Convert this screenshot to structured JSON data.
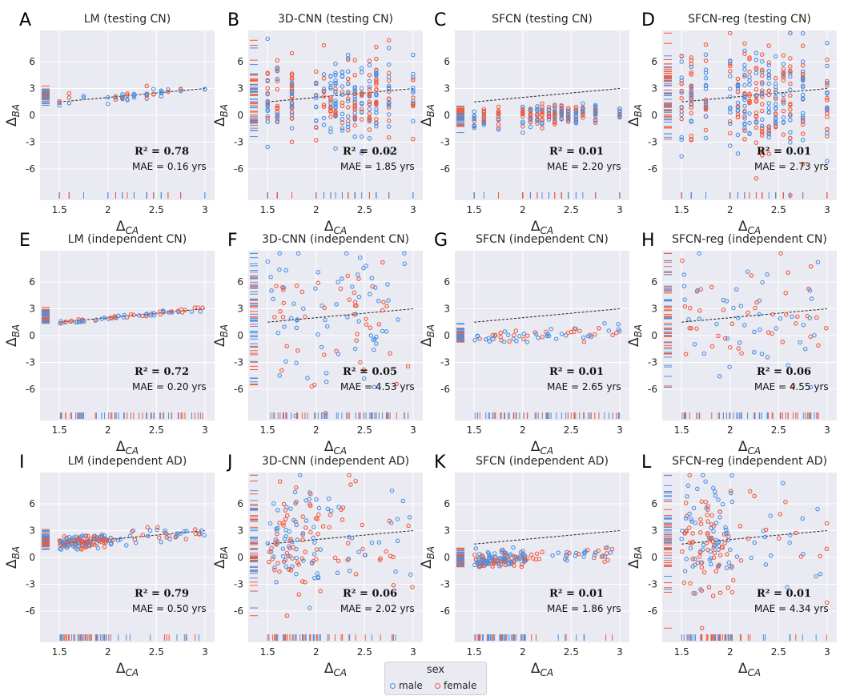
{
  "legend": {
    "title": "sex",
    "male_label": "male",
    "female_label": "female"
  },
  "colors": {
    "male": "#4a90e2",
    "female": "#ef5a3c",
    "panel_bg": "#eaeaf2",
    "grid": "#ffffff"
  },
  "chart_data": [
    {
      "id": "A",
      "type": "scatter",
      "title": "LM (testing CN)",
      "xlabel": "Δ",
      "xlabel_sub": "CA",
      "ylabel": "Δ",
      "ylabel_sub": "BA",
      "xticks": [
        "1.5",
        "2",
        "2.5",
        "3"
      ],
      "yticks": [
        "6",
        "3",
        "0",
        "-3",
        "-6"
      ],
      "xlim": [
        1.3,
        3.1
      ],
      "ylim": [
        -9.5,
        9.5
      ],
      "r2": "R² = 0.78",
      "mae": "MAE = 0.16 yrs",
      "spread": 0.3,
      "n": 48,
      "xmode": "testing",
      "pred": "lm"
    },
    {
      "id": "B",
      "type": "scatter",
      "title": "3D-CNN (testing CN)",
      "xlabel": "Δ",
      "xlabel_sub": "CA",
      "ylabel": "Δ",
      "ylabel_sub": "BA",
      "xticks": [
        "1.5",
        "2",
        "2.5",
        "3"
      ],
      "yticks": [
        "6",
        "3",
        "0",
        "-3",
        "-6"
      ],
      "xlim": [
        1.3,
        3.1
      ],
      "ylim": [
        -9.5,
        9.5
      ],
      "r2": "R² = 0.02",
      "mae": "MAE = 1.85 yrs",
      "spread": 2.3,
      "n": 300,
      "xmode": "testing",
      "pred": "cnn"
    },
    {
      "id": "C",
      "type": "scatter",
      "title": "SFCN (testing CN)",
      "xlabel": "Δ",
      "xlabel_sub": "CA",
      "ylabel": "Δ",
      "ylabel_sub": "BA",
      "xticks": [
        "1.5",
        "2",
        "2.5",
        "3"
      ],
      "yticks": [
        "6",
        "3",
        "0",
        "-3",
        "-6"
      ],
      "xlim": [
        1.3,
        3.1
      ],
      "ylim": [
        -9.5,
        9.5
      ],
      "r2": "R² = 0.01",
      "mae": "MAE = 2.20 yrs",
      "spread": 0.6,
      "n": 220,
      "xmode": "testing",
      "pred": "sfcn"
    },
    {
      "id": "D",
      "type": "scatter",
      "title": "SFCN-reg (testing CN)",
      "xlabel": "Δ",
      "xlabel_sub": "CA",
      "ylabel": "Δ",
      "ylabel_sub": "BA",
      "xticks": [
        "1.5",
        "2",
        "2.5",
        "3"
      ],
      "yticks": [
        "6",
        "3",
        "0",
        "-3",
        "-6"
      ],
      "xlim": [
        1.3,
        3.1
      ],
      "ylim": [
        -9.5,
        9.5
      ],
      "r2": "R² = 0.01",
      "mae": "MAE = 2.73 yrs",
      "spread": 3.0,
      "n": 320,
      "xmode": "testing",
      "pred": "cnn"
    },
    {
      "id": "E",
      "type": "scatter",
      "title": "LM (independent CN)",
      "xlabel": "Δ",
      "xlabel_sub": "CA",
      "ylabel": "Δ",
      "ylabel_sub": "BA",
      "xticks": [
        "1.5",
        "2",
        "2.5",
        "3"
      ],
      "yticks": [
        "6",
        "3",
        "0",
        "-3",
        "-6"
      ],
      "xlim": [
        1.3,
        3.1
      ],
      "ylim": [
        -9.5,
        9.5
      ],
      "r2": "R² = 0.72",
      "mae": "MAE = 0.20 yrs",
      "spread": 0.15,
      "n": 60,
      "xmode": "uniform",
      "pred": "lm"
    },
    {
      "id": "F",
      "type": "scatter",
      "title": "3D-CNN (independent CN)",
      "xlabel": "Δ",
      "xlabel_sub": "CA",
      "ylabel": "Δ",
      "ylabel_sub": "BA",
      "xticks": [
        "1.5",
        "2",
        "2.5",
        "3"
      ],
      "yticks": [
        "6",
        "3",
        "0",
        "-3",
        "-6"
      ],
      "xlim": [
        1.3,
        3.1
      ],
      "ylim": [
        -9.5,
        9.5
      ],
      "r2": "R² = 0.05",
      "mae": "MAE = 4.53 yrs",
      "spread": 4.5,
      "n": 110,
      "xmode": "uniform",
      "pred": "cnn"
    },
    {
      "id": "G",
      "type": "scatter",
      "title": "SFCN (independent CN)",
      "xlabel": "Δ",
      "xlabel_sub": "CA",
      "ylabel": "Δ",
      "ylabel_sub": "BA",
      "xticks": [
        "1.5",
        "2",
        "2.5",
        "3"
      ],
      "yticks": [
        "6",
        "3",
        "0",
        "-3",
        "-6"
      ],
      "xlim": [
        1.3,
        3.1
      ],
      "ylim": [
        -9.5,
        9.5
      ],
      "r2": "R² = 0.01",
      "mae": "MAE = 2.65 yrs",
      "spread": 0.4,
      "n": 60,
      "xmode": "uniform",
      "pred": "sfcn"
    },
    {
      "id": "H",
      "type": "scatter",
      "title": "SFCN-reg (independent CN)",
      "xlabel": "Δ",
      "xlabel_sub": "CA",
      "ylabel": "Δ",
      "ylabel_sub": "BA",
      "xticks": [
        "1.5",
        "2",
        "2.5",
        "3"
      ],
      "yticks": [
        "6",
        "3",
        "0",
        "-3",
        "-6"
      ],
      "xlim": [
        1.3,
        3.1
      ],
      "ylim": [
        -9.5,
        9.5
      ],
      "r2": "R² = 0.06",
      "mae": "MAE = 4.55 yrs",
      "spread": 4.0,
      "n": 85,
      "xmode": "uniform",
      "pred": "cnn"
    },
    {
      "id": "I",
      "type": "scatter",
      "title": "LM (independent AD)",
      "xlabel": "Δ",
      "xlabel_sub": "CA",
      "ylabel": "Δ",
      "ylabel_sub": "BA",
      "xticks": [
        "1.5",
        "2",
        "2.5",
        "3"
      ],
      "yticks": [
        "6",
        "3",
        "0",
        "-3",
        "-6"
      ],
      "xlim": [
        1.3,
        3.1
      ],
      "ylim": [
        -9.5,
        9.5
      ],
      "r2": "R² = 0.79",
      "mae": "MAE = 0.50 yrs",
      "spread": 0.4,
      "n": 160,
      "xmode": "ad",
      "pred": "lm"
    },
    {
      "id": "J",
      "type": "scatter",
      "title": "3D-CNN (independent AD)",
      "xlabel": "Δ",
      "xlabel_sub": "CA",
      "ylabel": "Δ",
      "ylabel_sub": "BA",
      "xticks": [
        "1.5",
        "2",
        "2.5",
        "3"
      ],
      "yticks": [
        "6",
        "3",
        "0",
        "-3",
        "-6"
      ],
      "xlim": [
        1.3,
        3.1
      ],
      "ylim": [
        -9.5,
        9.5
      ],
      "r2": "R² = 0.06",
      "mae": "MAE = 2.02 yrs",
      "spread": 3.0,
      "n": 160,
      "xmode": "ad",
      "pred": "cnn"
    },
    {
      "id": "K",
      "type": "scatter",
      "title": "SFCN (independent AD)",
      "xlabel": "Δ",
      "xlabel_sub": "CA",
      "ylabel": "Δ",
      "ylabel_sub": "BA",
      "xticks": [
        "1.5",
        "2",
        "2.5",
        "3"
      ],
      "yticks": [
        "6",
        "3",
        "0",
        "-3",
        "-6"
      ],
      "xlim": [
        1.3,
        3.1
      ],
      "ylim": [
        -9.5,
        9.5
      ],
      "r2": "R² = 0.01",
      "mae": "MAE = 1.86 yrs",
      "spread": 0.45,
      "n": 160,
      "xmode": "ad",
      "pred": "sfcn"
    },
    {
      "id": "L",
      "type": "scatter",
      "title": "SFCN-reg (independent AD)",
      "xlabel": "Δ",
      "xlabel_sub": "CA",
      "ylabel": "Δ",
      "ylabel_sub": "BA",
      "xticks": [
        "1.5",
        "2",
        "2.5",
        "3"
      ],
      "yticks": [
        "6",
        "3",
        "0",
        "-3",
        "-6"
      ],
      "xlim": [
        1.3,
        3.1
      ],
      "ylim": [
        -9.5,
        9.5
      ],
      "r2": "R² = 0.01",
      "mae": "MAE = 4.34 yrs",
      "spread": 3.3,
      "n": 160,
      "xmode": "ad",
      "pred": "cnn"
    }
  ]
}
